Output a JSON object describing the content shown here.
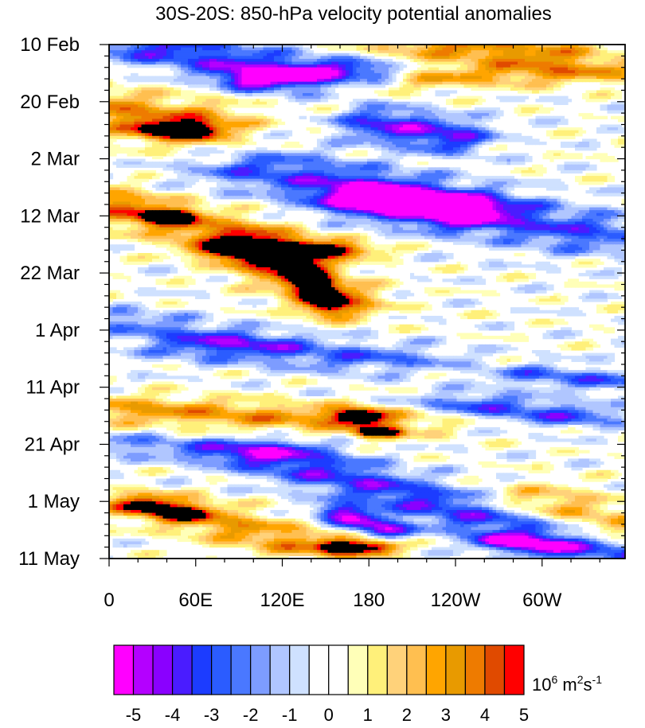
{
  "chart_data": {
    "type": "heatmap",
    "title": "30S-20S: 850-hPa velocity potential anomalies",
    "x_ticks": [
      {
        "lon": 0,
        "label": "0"
      },
      {
        "lon": 60,
        "label": "60E"
      },
      {
        "lon": 120,
        "label": "120E"
      },
      {
        "lon": 180,
        "label": "180"
      },
      {
        "lon": 240,
        "label": "120W"
      },
      {
        "lon": 300,
        "label": "60W"
      }
    ],
    "x_range": [
      0,
      357.5
    ],
    "y_ticks": [
      {
        "day": 0,
        "label": "10 Feb"
      },
      {
        "day": 10,
        "label": "20 Feb"
      },
      {
        "day": 20,
        "label": "2 Mar"
      },
      {
        "day": 30,
        "label": "12 Mar"
      },
      {
        "day": 40,
        "label": "22 Mar"
      },
      {
        "day": 50,
        "label": "1 Apr"
      },
      {
        "day": 60,
        "label": "11 Apr"
      },
      {
        "day": 70,
        "label": "21 Apr"
      },
      {
        "day": 80,
        "label": "1 May"
      },
      {
        "day": 90,
        "label": "11 May"
      }
    ],
    "y_range": [
      0,
      90
    ],
    "colorbar": {
      "levels": [
        "-5",
        "-4.5",
        "-4",
        "-3.5",
        "-3",
        "-2.5",
        "-2",
        "-1.5",
        "-1",
        "-0.5",
        "0",
        "0.5",
        "1",
        "1.5",
        "2",
        "2.5",
        "3",
        "3.5",
        "4",
        "4.5",
        "5"
      ],
      "labels": [
        "-5",
        "-4",
        "-3",
        "-2",
        "-1",
        "0",
        "1",
        "2",
        "3",
        "4",
        "5"
      ],
      "colors": [
        "#ff00ff",
        "#b400ff",
        "#8a00ff",
        "#4a1cff",
        "#1c3cff",
        "#2b5cff",
        "#4a78ff",
        "#7d9cff",
        "#b0c6ff",
        "#cfe1ff",
        "#ffffff",
        "#ffffff",
        "#ffffb8",
        "#fff07a",
        "#ffd27a",
        "#ffbf50",
        "#ffa500",
        "#e89a00",
        "#ee7b00",
        "#e04a00",
        "#ff0000"
      ],
      "unit_base": "10",
      "unit_exp1": "6",
      "unit_mid": " m",
      "unit_exp2": "2",
      "unit_s": "s",
      "unit_exp3": "-1"
    },
    "features": [
      {
        "x0": 20,
        "d0": 0,
        "x1": 130,
        "d1": 5,
        "w": 40,
        "h": 3.0,
        "amp": -3.5
      },
      {
        "x0": 100,
        "d0": 6,
        "x1": 180,
        "d1": 5,
        "w": 25,
        "h": 2.0,
        "amp": -4.5
      },
      {
        "x0": 230,
        "d0": 0,
        "x1": 300,
        "d1": 2,
        "w": 45,
        "h": 2.5,
        "amp": 3.5
      },
      {
        "x0": 180,
        "d0": 6,
        "x1": 340,
        "d1": 5,
        "w": 55,
        "h": 2.0,
        "amp": 2.5
      },
      {
        "x0": 0,
        "d0": 12,
        "x1": 60,
        "d1": 14,
        "w": 40,
        "h": 4.0,
        "amp": 3.5
      },
      {
        "x0": 35,
        "d0": 15,
        "x1": 60,
        "d1": 15,
        "w": 15,
        "h": 1.5,
        "amp": 4.5
      },
      {
        "x0": 190,
        "d0": 14,
        "x1": 235,
        "d1": 16,
        "w": 30,
        "h": 3.0,
        "amp": -4.0
      },
      {
        "x0": 110,
        "d0": 22,
        "x1": 330,
        "d1": 33,
        "w": 55,
        "h": 3.5,
        "amp": -3.0
      },
      {
        "x0": 180,
        "d0": 27,
        "x1": 240,
        "d1": 29,
        "w": 35,
        "h": 3.0,
        "amp": -5.0
      },
      {
        "x0": 0,
        "d0": 28,
        "x1": 120,
        "d1": 36,
        "w": 40,
        "h": 3.0,
        "amp": 3.5
      },
      {
        "x0": 35,
        "d0": 30,
        "x1": 45,
        "d1": 30,
        "w": 15,
        "h": 1.2,
        "amp": 4.5
      },
      {
        "x0": 100,
        "d0": 36,
        "x1": 160,
        "d1": 45,
        "w": 30,
        "h": 3.0,
        "amp": 4.0
      },
      {
        "x0": 100,
        "d0": 36,
        "x1": 150,
        "d1": 36,
        "w": 35,
        "h": 1.2,
        "amp": 5.2
      },
      {
        "x0": 135,
        "d0": 40,
        "x1": 150,
        "d1": 45,
        "w": 12,
        "h": 2.0,
        "amp": 5.0
      },
      {
        "x0": 0,
        "d0": 48,
        "x1": 90,
        "d1": 52,
        "w": 45,
        "h": 2.0,
        "amp": -2.0
      },
      {
        "x0": 80,
        "d0": 53,
        "x1": 180,
        "d1": 55,
        "w": 60,
        "h": 2.5,
        "amp": -2.5
      },
      {
        "x0": 300,
        "d0": 58,
        "x1": 357,
        "d1": 59,
        "w": 40,
        "h": 2.0,
        "amp": -2.5
      },
      {
        "x0": 20,
        "d0": 64,
        "x1": 180,
        "d1": 66,
        "w": 55,
        "h": 2.5,
        "amp": 3.0
      },
      {
        "x0": 170,
        "d0": 65,
        "x1": 175,
        "d1": 65,
        "w": 15,
        "h": 1.3,
        "amp": 5.2
      },
      {
        "x0": 180,
        "d0": 68,
        "x1": 195,
        "d1": 68,
        "w": 10,
        "h": 1.0,
        "amp": 4.5
      },
      {
        "x0": 250,
        "d0": 63,
        "x1": 320,
        "d1": 65,
        "w": 40,
        "h": 2.0,
        "amp": -3.0
      },
      {
        "x0": 0,
        "d0": 70,
        "x1": 100,
        "d1": 71,
        "w": 50,
        "h": 2.0,
        "amp": -2.0
      },
      {
        "x0": 110,
        "d0": 72,
        "x1": 357,
        "d1": 90,
        "w": 45,
        "h": 2.5,
        "amp": -3.5
      },
      {
        "x0": 160,
        "d0": 82,
        "x1": 190,
        "d1": 85,
        "w": 20,
        "h": 1.5,
        "amp": -4.5
      },
      {
        "x0": 270,
        "d0": 87,
        "x1": 300,
        "d1": 88,
        "w": 20,
        "h": 1.3,
        "amp": -4.0
      },
      {
        "x0": 20,
        "d0": 80,
        "x1": 140,
        "d1": 88,
        "w": 45,
        "h": 2.0,
        "amp": 3.0
      },
      {
        "x0": 30,
        "d0": 81,
        "x1": 50,
        "d1": 82,
        "w": 20,
        "h": 1.3,
        "amp": 4.0
      },
      {
        "x0": 160,
        "d0": 88,
        "x1": 185,
        "d1": 88,
        "w": 15,
        "h": 1.3,
        "amp": 5.0
      },
      {
        "x0": 300,
        "d0": 80,
        "x1": 357,
        "d1": 85,
        "w": 40,
        "h": 3.0,
        "amp": 2.5
      }
    ]
  }
}
